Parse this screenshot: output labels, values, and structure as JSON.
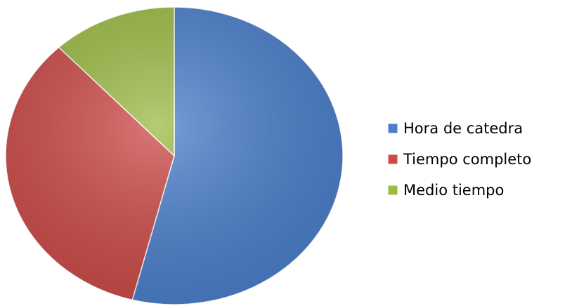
{
  "chart_data": {
    "type": "pie",
    "categories": [
      "Hora de catedra",
      "Tiempo completo",
      "Medio tiempo"
    ],
    "values": [
      54,
      34,
      12
    ],
    "colors": [
      "#4a7fcc",
      "#cc4a47",
      "#9bbb44"
    ],
    "legend": "right"
  }
}
